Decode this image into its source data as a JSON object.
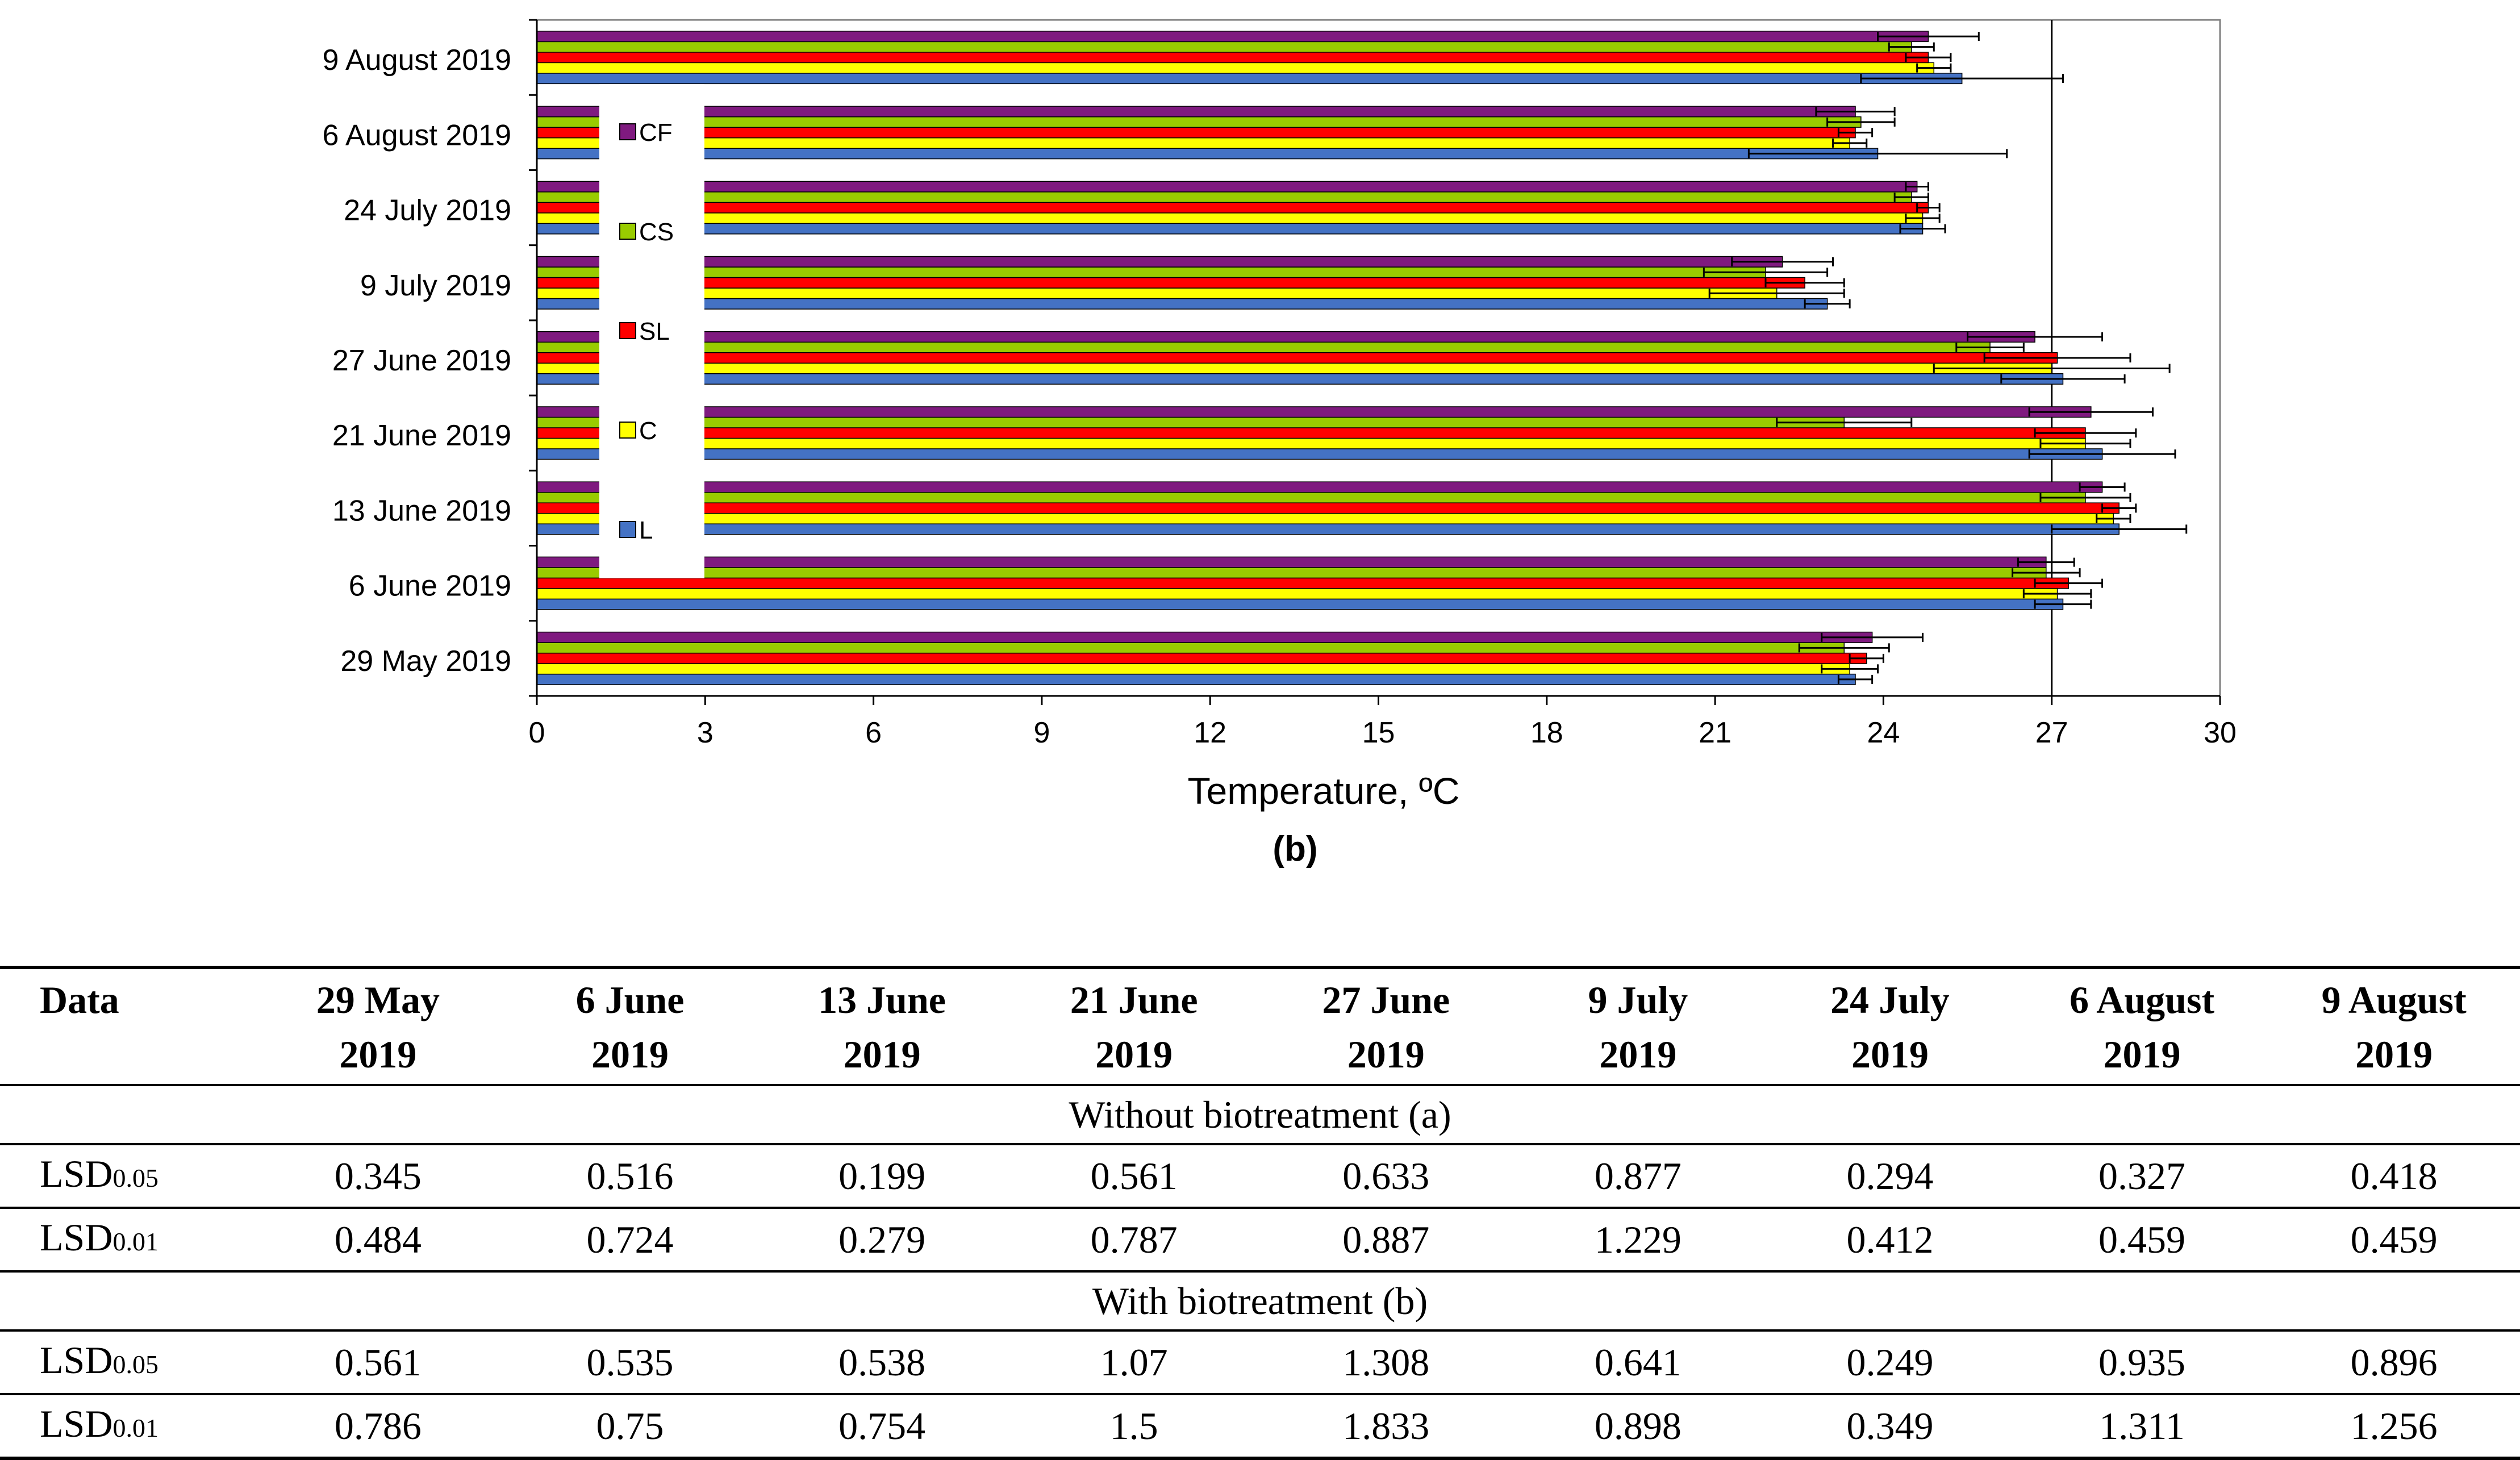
{
  "chart_data": {
    "type": "bar",
    "orientation": "horizontal",
    "categories": [
      "29 May 2019",
      "6 June 2019",
      "13 June 2019",
      "21 June 2019",
      "27 June 2019",
      "9 July 2019",
      "24 July 2019",
      "6 August 2019",
      "9 August 2019"
    ],
    "series": [
      {
        "name": "L",
        "color": "#4472C4",
        "values": [
          23.5,
          27.2,
          28.2,
          27.9,
          27.2,
          23.0,
          24.7,
          23.9,
          25.4
        ],
        "errors": [
          0.3,
          0.5,
          1.2,
          1.3,
          1.1,
          0.4,
          0.4,
          2.3,
          1.8
        ]
      },
      {
        "name": "C",
        "color": "#FFFF00",
        "values": [
          23.4,
          27.1,
          28.1,
          27.6,
          27.0,
          22.1,
          24.7,
          23.4,
          24.9
        ],
        "errors": [
          0.5,
          0.6,
          0.3,
          0.8,
          2.1,
          1.2,
          0.3,
          0.3,
          0.3
        ]
      },
      {
        "name": "SL",
        "color": "#FF0000",
        "values": [
          23.7,
          27.3,
          28.2,
          27.6,
          27.1,
          22.6,
          24.8,
          23.5,
          24.8
        ],
        "errors": [
          0.3,
          0.6,
          0.3,
          0.9,
          1.3,
          0.7,
          0.2,
          0.3,
          0.4
        ]
      },
      {
        "name": "CS",
        "color": "#99CC00",
        "values": [
          23.3,
          26.9,
          27.6,
          23.3,
          25.9,
          21.9,
          24.5,
          23.6,
          24.5
        ],
        "errors": [
          0.8,
          0.6,
          0.8,
          1.2,
          0.6,
          1.1,
          0.3,
          0.6,
          0.4
        ]
      },
      {
        "name": "CF",
        "color": "#7F1A7F",
        "values": [
          23.8,
          26.9,
          27.9,
          27.7,
          26.7,
          22.2,
          24.6,
          23.5,
          24.8
        ],
        "errors": [
          0.9,
          0.5,
          0.4,
          1.1,
          1.2,
          0.9,
          0.2,
          0.7,
          0.9
        ]
      }
    ],
    "xlabel": "Temperature, ºC",
    "xlim": [
      0,
      30
    ],
    "xticks": [
      0,
      3,
      6,
      9,
      12,
      15,
      18,
      21,
      24,
      27,
      30
    ],
    "reference_line": 27,
    "legend": [
      "CF",
      "CS",
      "SL",
      "C",
      "L"
    ],
    "legend_placement": "top-left",
    "caption": "(b)"
  },
  "table": {
    "headers": [
      {
        "line1": "Data",
        "line2": ""
      },
      {
        "line1": "29 May",
        "line2": "2019"
      },
      {
        "line1": "6 June",
        "line2": "2019"
      },
      {
        "line1": "13 June",
        "line2": "2019"
      },
      {
        "line1": "21 June",
        "line2": "2019"
      },
      {
        "line1": "27 June",
        "line2": "2019"
      },
      {
        "line1": "9 July",
        "line2": "2019"
      },
      {
        "line1": "24 July",
        "line2": "2019"
      },
      {
        "line1": "6 August",
        "line2": "2019"
      },
      {
        "line1": "9 August",
        "line2": "2019"
      }
    ],
    "sections": [
      {
        "title": "Without biotreatment (a)",
        "rows": [
          {
            "label": "LSD",
            "sub": "0.05",
            "values": [
              "0.345",
              "0.516",
              "0.199",
              "0.561",
              "0.633",
              "0.877",
              "0.294",
              "0.327",
              "0.418"
            ]
          },
          {
            "label": "LSD",
            "sub": "0.01",
            "values": [
              "0.484",
              "0.724",
              "0.279",
              "0.787",
              "0.887",
              "1.229",
              "0.412",
              "0.459",
              "0.459"
            ]
          }
        ]
      },
      {
        "title": "With biotreatment (b)",
        "rows": [
          {
            "label": "LSD",
            "sub": "0.05",
            "values": [
              "0.561",
              "0.535",
              "0.538",
              "1.07",
              "1.308",
              "0.641",
              "0.249",
              "0.935",
              "0.896"
            ]
          },
          {
            "label": "LSD",
            "sub": "0.01",
            "values": [
              "0.786",
              "0.75",
              "0.754",
              "1.5",
              "1.833",
              "0.898",
              "0.349",
              "1.311",
              "1.256"
            ]
          }
        ]
      }
    ]
  }
}
